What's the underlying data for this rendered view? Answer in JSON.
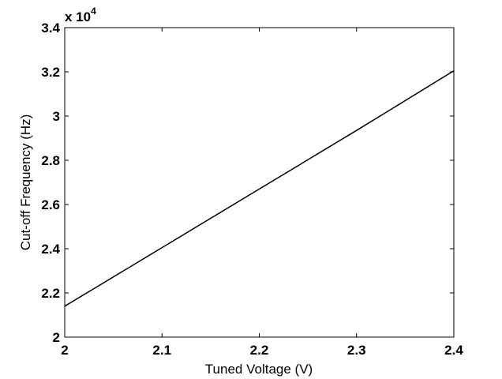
{
  "chart_data": {
    "type": "line",
    "xlabel": "Tuned Voltage (V)",
    "ylabel": "Cut-off Frequency (Hz)",
    "y_multiplier": "x 10",
    "y_multiplier_exponent": "4",
    "x": [
      2,
      2.1,
      2.2,
      2.3,
      2.4
    ],
    "series": [
      {
        "name": "Cut-off Frequency",
        "color": "#000000",
        "values": [
          2.14,
          2.405,
          2.67,
          2.935,
          3.205
        ]
      }
    ],
    "xlim": [
      2,
      2.4
    ],
    "xticks": [
      2,
      2.1,
      2.2,
      2.3,
      2.4
    ],
    "ylim": [
      2,
      3.4
    ],
    "yticks": [
      2,
      2.2,
      2.4,
      2.6,
      2.8,
      3,
      3.2,
      3.4
    ],
    "grid": false
  }
}
